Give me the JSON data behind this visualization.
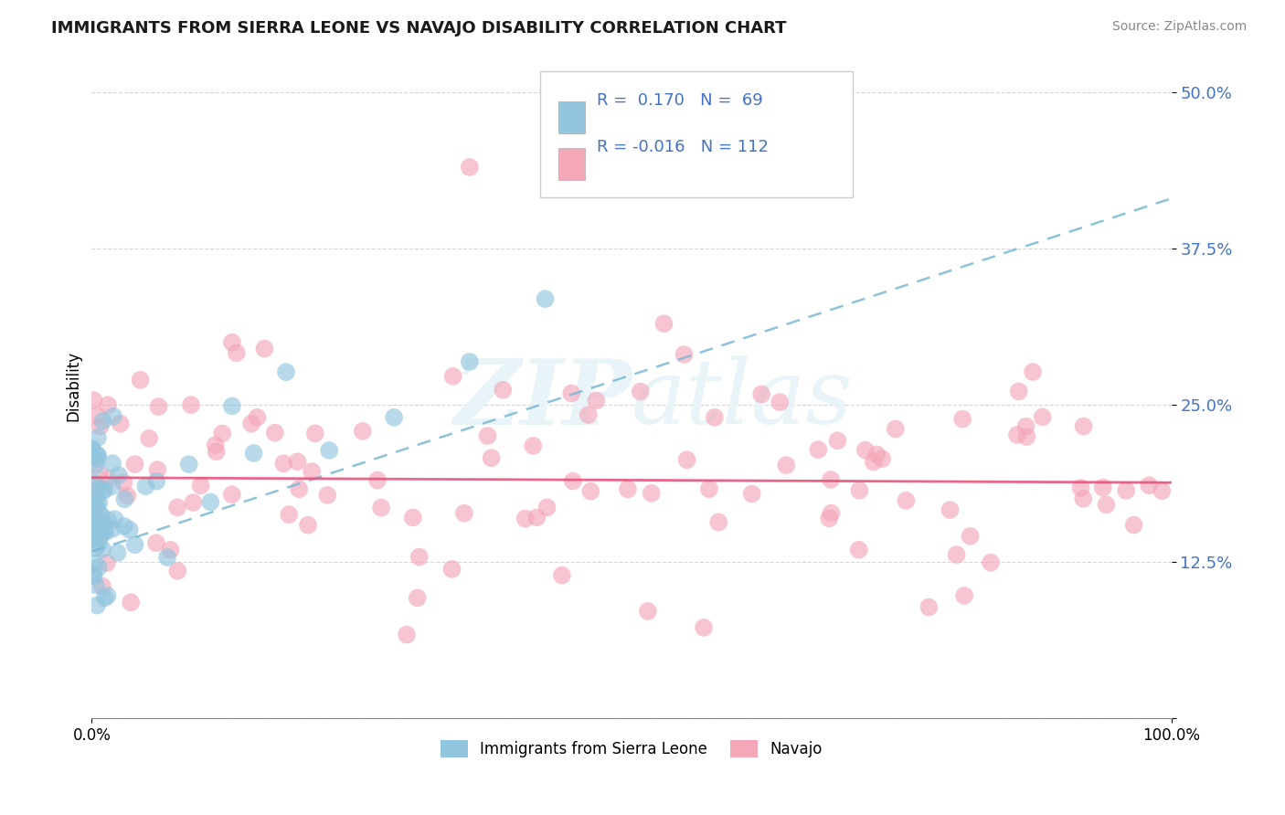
{
  "title": "IMMIGRANTS FROM SIERRA LEONE VS NAVAJO DISABILITY CORRELATION CHART",
  "source": "Source: ZipAtlas.com",
  "ylabel": "Disability",
  "legend_label1": "Immigrants from Sierra Leone",
  "legend_label2": "Navajo",
  "r1": 0.17,
  "n1": 69,
  "r2": -0.016,
  "n2": 112,
  "color_blue": "#92c5de",
  "color_pink": "#f4a7b9",
  "trendline_blue_color": "#7ab8d4",
  "trendline_pink_color": "#e8547a",
  "watermark_color": "#e8f4f8",
  "xlim": [
    0,
    1
  ],
  "ylim": [
    0.0,
    0.53
  ],
  "yticks": [
    0.0,
    0.125,
    0.25,
    0.375,
    0.5
  ],
  "ytick_labels": [
    "",
    "12.5%",
    "25.0%",
    "37.5%",
    "50.0%"
  ],
  "title_color": "#1a1a1a",
  "source_color": "#888888",
  "tick_label_color": "#4472C4",
  "grid_color": "#cccccc"
}
